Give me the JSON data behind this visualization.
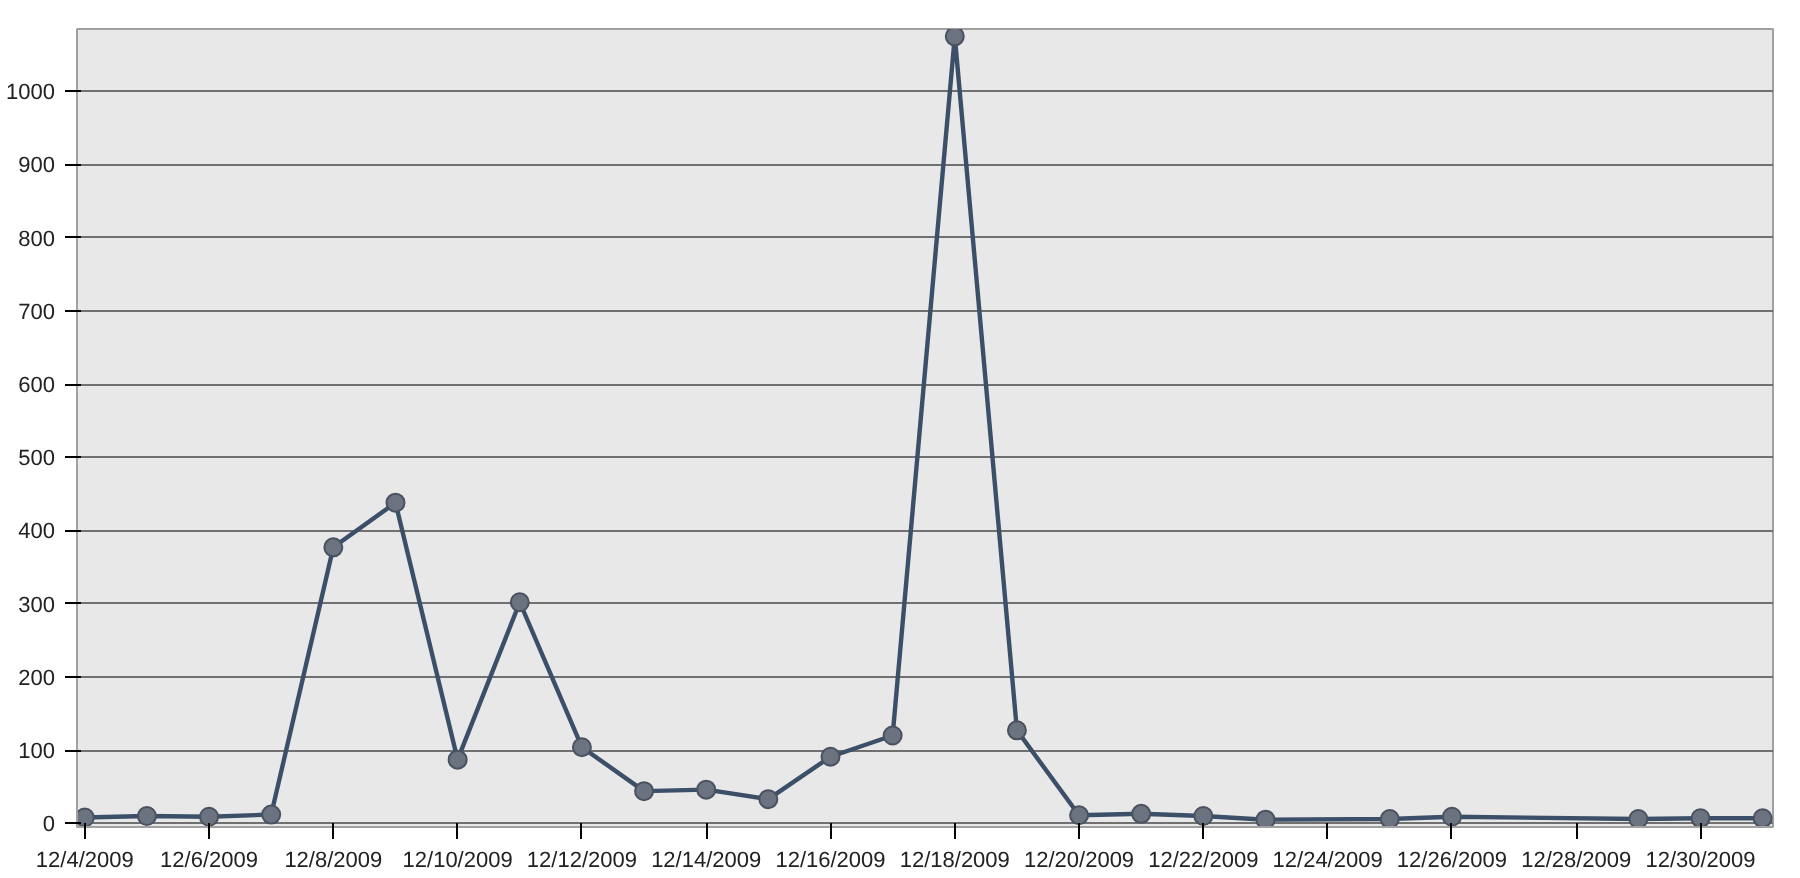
{
  "chart_data": {
    "type": "line",
    "x": [
      "2009-12-04",
      "2009-12-05",
      "2009-12-06",
      "2009-12-07",
      "2009-12-08",
      "2009-12-09",
      "2009-12-10",
      "2009-12-11",
      "2009-12-12",
      "2009-12-13",
      "2009-12-14",
      "2009-12-15",
      "2009-12-16",
      "2009-12-17",
      "2009-12-18",
      "2009-12-19",
      "2009-12-20",
      "2009-12-21",
      "2009-12-22",
      "2009-12-23",
      "2009-12-25",
      "2009-12-26",
      "2009-12-29",
      "2009-12-30",
      "2009-12-31"
    ],
    "series": [
      {
        "color": "#3b4f68",
        "values": [
          8,
          10,
          9,
          12,
          377,
          438,
          87,
          302,
          104,
          44,
          46,
          33,
          91,
          120,
          1075,
          127,
          11,
          13,
          10,
          5,
          6,
          9,
          6,
          7,
          7
        ]
      }
    ],
    "xlim": [
      "2009-12-03T21:00",
      "2009-12-31T04:00"
    ],
    "xticks": [
      {
        "value": "2009-12-04",
        "label": "12/4/2009"
      },
      {
        "value": "2009-12-06",
        "label": "12/6/2009"
      },
      {
        "value": "2009-12-08",
        "label": "12/8/2009"
      },
      {
        "value": "2009-12-10",
        "label": "12/10/2009"
      },
      {
        "value": "2009-12-12",
        "label": "12/12/2009"
      },
      {
        "value": "2009-12-14",
        "label": "12/14/2009"
      },
      {
        "value": "2009-12-16",
        "label": "12/16/2009"
      },
      {
        "value": "2009-12-18",
        "label": "12/18/2009"
      },
      {
        "value": "2009-12-20",
        "label": "12/20/2009"
      },
      {
        "value": "2009-12-22",
        "label": "12/22/2009"
      },
      {
        "value": "2009-12-24",
        "label": "12/24/2009"
      },
      {
        "value": "2009-12-26",
        "label": "12/26/2009"
      },
      {
        "value": "2009-12-28",
        "label": "12/28/2009"
      },
      {
        "value": "2009-12-30",
        "label": "12/30/2009"
      }
    ],
    "ylim": [
      -5,
      1085
    ],
    "yticks": [
      0,
      100,
      200,
      300,
      400,
      500,
      600,
      700,
      800,
      900,
      1000
    ],
    "grid": "y",
    "marker": "circle",
    "line_style": "solid"
  }
}
